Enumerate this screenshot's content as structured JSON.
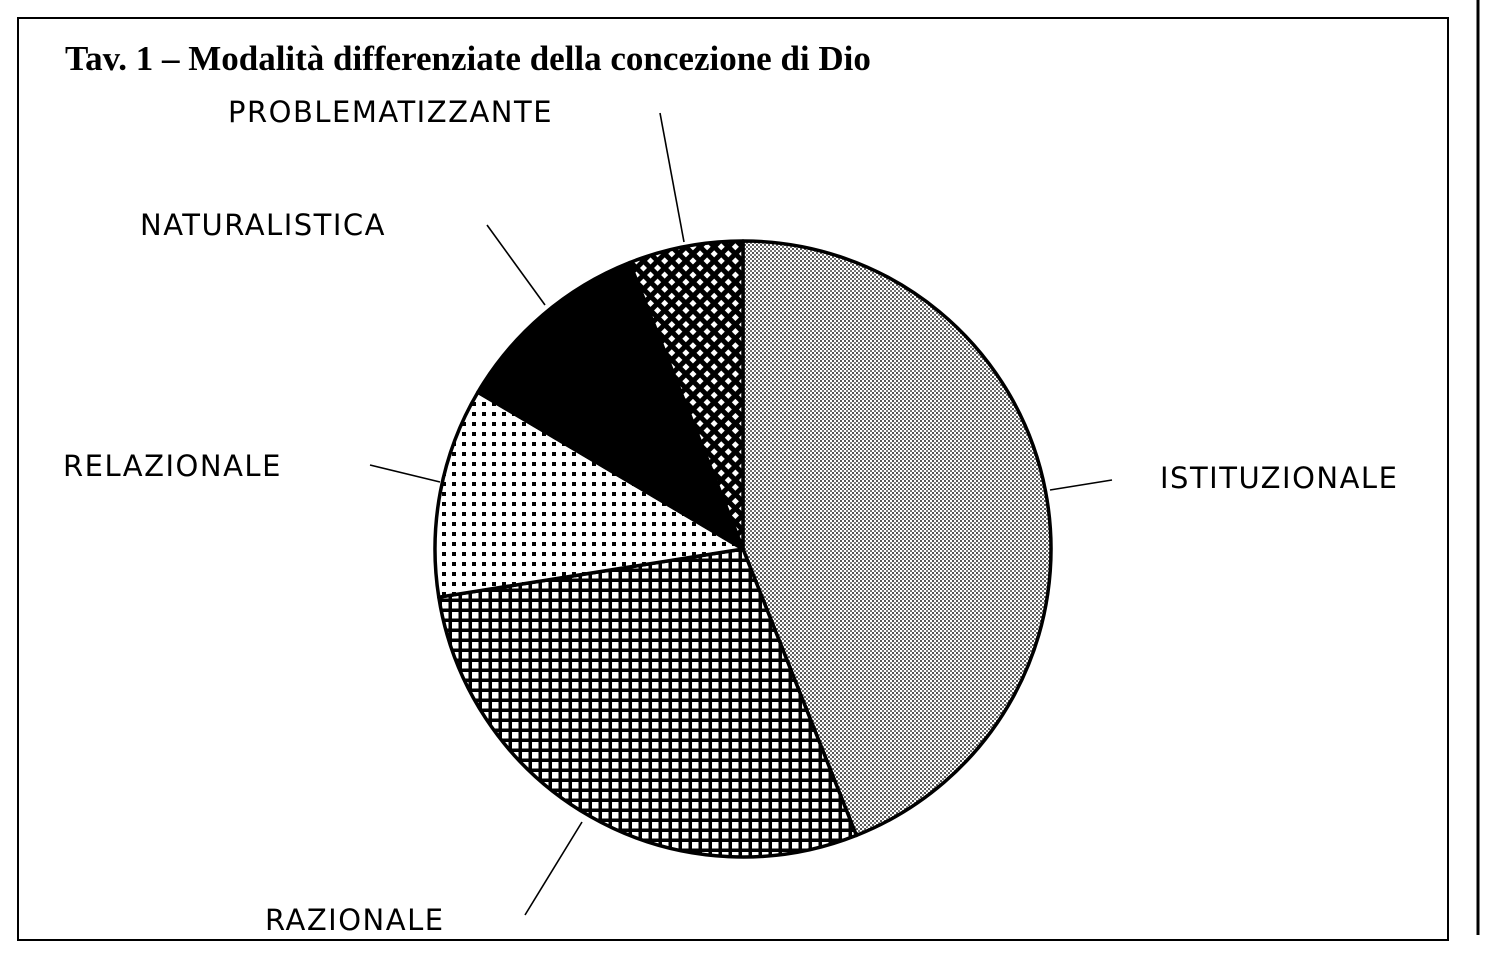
{
  "chart_data": {
    "type": "pie",
    "title": "Tav. 1 – Modalità differenziate della concezione di Dio",
    "categories": [
      "ISTITUZIONALE",
      "RAZIONALE",
      "RELAZIONALE",
      "NATURALISTICA",
      "PROBLEMATIZZANTE"
    ],
    "values": [
      44,
      28.5,
      11,
      10.5,
      6
    ]
  }
}
